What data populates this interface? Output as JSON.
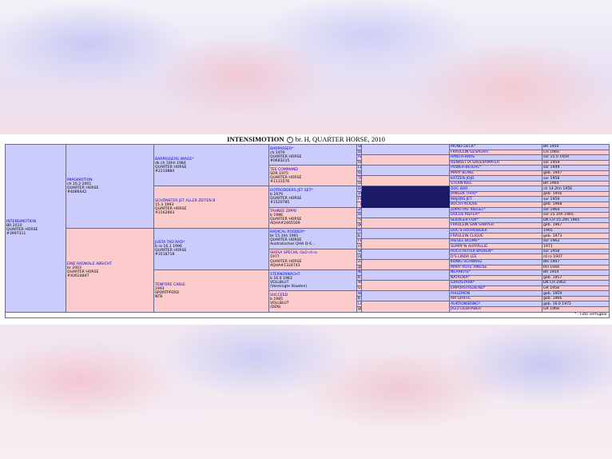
{
  "page": {
    "title_name": "INTENSIMOTION",
    "title_rest": "br. H, QUARTER HORSE, 2010",
    "info_icon": "info-icon",
    "footnote": "* - Foto verfügbar",
    "colors": {
      "male_bg": "#ccccfc",
      "female_bg": "#fccccc",
      "link": "#0000cc",
      "marker": "#1a1a66"
    }
  },
  "gen1": {
    "name": "INTENSIMOTION",
    "lines": [
      "BR 2010",
      "QUARTER HORSE",
      "#3997311"
    ]
  },
  "gen2": [
    {
      "name": "IMAGINOTION",
      "lines": [
        "ch 16.2 2001",
        "QUARTER HORSE",
        "#4086442"
      ]
    },
    {
      "name": "EINE RADIKALE ABSICHT",
      "lines": [
        "br 2003",
        "QUARTER HORSE",
        "#X0624847"
      ]
    }
  ],
  "gen3": [
    {
      "name": "BARPASSERS IMAGE*",
      "lines": [
        "dk ch 16hh 1984",
        "QUARTER HORSE",
        "#2210884"
      ]
    },
    {
      "name": "SCHÖNSTER JET ALLER ZEITEN B",
      "lines": [
        "15.3 1993",
        "QUARTER HORSE",
        "#3162863"
      ]
    },
    {
      "name": "JUSTA TAD RAD*",
      "lines": [
        "b ro 16.1 1996",
        "QUARTER HORSE",
        "#3518718"
      ]
    },
    {
      "name": "TENFORE CABLE",
      "lines": [
        "1993",
        "SPORTPFERD",
        "NTB"
      ]
    }
  ],
  "gen4": [
    {
      "name": "BARPASSER*",
      "lines": [
        "ch 1970",
        "QUARTER HORSE",
        "#0683215"
      ]
    },
    {
      "name": "TEE COMMAND",
      "lines": [
        "SOR 1975",
        "QUARTER HORSE",
        "#1131576"
      ]
    },
    {
      "name": "HOTRODDERS JET SET*",
      "lines": [
        "b 1979",
        "QUARTER HORSE",
        "#1520785"
      ]
    },
    {
      "name": "TAHNEE ZIPPO",
      "lines": [
        "b 1986",
        "QUARTER HORSE",
        "AQHA#2465509"
      ]
    },
    {
      "name": "RADICAL RODDER*",
      "lines": [
        "br 15.1hh 1991",
        "QUARTER HORSE",
        "Australisches QHA Q-6..."
      ]
    },
    {
      "name": "SHESA SPECIAL GLO rd ro",
      "lines": [
        "1977",
        "QUARTER HORSE",
        "AQHA#1324743"
      ]
    },
    {
      "name": "STERNENNACHT",
      "lines": [
        "b 16.0 1983",
        "VOLLBLUT",
        "(Vereinigte Staaten)"
      ]
    },
    {
      "name": "SUCCEED",
      "lines": [
        "b 1985",
        "VOLLBLUT",
        "(DEN)"
      ]
    }
  ],
  "gen5": [
    {
      "name": "SENOR BARDECK*",
      "detail": "sor 16.1 1965"
    },
    {
      "name": "RANCH BARS VANDY",
      "detail": "oder 1963"
    },
    {
      "name": "LETZTER BEFEHL",
      "detail": "sor 1959"
    },
    {
      "name": "TEE FIVE STAR",
      "detail": "oder 1969"
    },
    {
      "name": "DOC'S HOTRODDER",
      "detail": "1965"
    },
    {
      "name": "FRÄULEIN CLIQUE",
      "detail": ". geb. 1973"
    },
    {
      "name": "ZIPPO PINE BAR*",
      "detail": "sor 15.2hh 1969"
    },
    {
      "name": "TOSHI",
      "detail": "geb. 1981"
    },
    {
      "name": "HOTRODDERS JET SET*",
      "detail": "b 1979"
    },
    {
      "name": "FLASHY BAR FLOWER",
      "detail": "ch 1979"
    },
    {
      "name": "SPEEDY GLOW*",
      "detail": "rd ro 1962"
    },
    {
      "name": "ZANTANONA KING",
      "detail": "geb. 1961"
    },
    {
      "name": "NORTHERN DANCER*",
      "detail": "b 15.1hh 1961"
    },
    {
      "name": "WOLKENSCHLOSS",
      "detail": "GR 1972"
    },
    {
      "name": "WHIP IT QUICK",
      "detail": "b 1972"
    },
    {
      "name": "LIEBE ZUM VERKAUF",
      "detail": "gr 1979"
    }
  ],
  "gen6": [
    {
      "name": "MOND-DECK*",
      "detail": "BR 1950"
    },
    {
      "name": "FRÄULEIN GESPERRT",
      "detail": "CH 1960"
    },
    {
      "name": "RANCH-BARS",
      "detail": "sor 15.0 1959"
    },
    {
      "name": "HENRIETTA SAUERAMPFER",
      "detail": "sor 1959"
    },
    {
      "name": "POWER-BEFEHL*",
      "detail": "sor 1949"
    },
    {
      "name": "MARY BLAKE",
      "detail": "geb. 1947"
    },
    {
      "name": "KATZEN JOJO",
      "detail": "sor 1958"
    },
    {
      "name": "STERN-KIEL",
      "detail": "BR 1960"
    },
    {
      "name": "DOC BAR",
      "detail": "ch 14.2hh 1956"
    },
    {
      "name": "JAMEEN TIVIO*",
      "detail": "geb. 1956"
    },
    {
      "name": "MAJORS JET",
      "detail": "sor 1959"
    },
    {
      "name": "BUCHT-KLIQUE",
      "detail": "geb. 1968"
    },
    {
      "name": "ZIPPO PAT RIEGEL*",
      "detail": "sor 1964"
    },
    {
      "name": "DOLLIE KIEFER*",
      "detail": "sor 15.1hh 1965"
    },
    {
      "name": "SEIDIGER FOX*",
      "detail": "DK CH 15.2hh 1965"
    },
    {
      "name": "FRÄULEIN SAN SAWYER",
      "detail": "geb. 1967"
    },
    {
      "name": "DOC'S HOTRODDER",
      "detail": "1965"
    },
    {
      "name": "FRÄULEIN CLIQUE",
      "detail": "geb. 1973"
    },
    {
      "name": "RIEGEL BLUME*",
      "detail": "sor 1962"
    },
    {
      "name": "SUMPF'N AUFFÄLLIG",
      "detail": "1971"
    },
    {
      "name": "ROCO ROTER BALKEN*",
      "detail": "sor 1958"
    },
    {
      "name": "D'S LINDA LEE",
      "detail": "rd ro 1947"
    },
    {
      "name": "KÖNIG SCHWARZ",
      "detail": "Blk 1947"
    },
    {
      "name": "MARY ROTE AMEISE",
      "detail": "RO 1944"
    },
    {
      "name": "NEARKTIS*",
      "detail": "BR 1954"
    },
    {
      "name": "NATALMA*",
      "detail": "geb. 1957"
    },
    {
      "name": "GRAUSTARK*",
      "detail": "DK CH 1963"
    },
    {
      "name": "EMPORSTREBEND*",
      "detail": "GR 1958"
    },
    {
      "name": "PHILEMON",
      "detail": "geb. 1959"
    },
    {
      "name": "MA GRIFFE",
      "detail": "geb. 1966"
    },
    {
      "name": "AUKTIONSRING*",
      "detail": "geb. 16.0 1972"
    },
    {
      "name": "JAZZ-LIEBHABER",
      "detail": "GR 1968"
    }
  ]
}
